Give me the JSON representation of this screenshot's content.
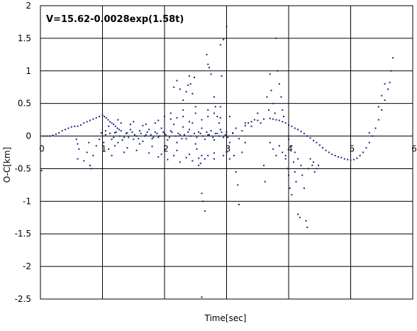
{
  "chart_data": {
    "type": "scatter",
    "title": "V=15.62-0.0028exp(1.58t)",
    "xlabel": "Time[sec]",
    "ylabel": "O-C[km]",
    "xlim": [
      0,
      6
    ],
    "ylim": [
      -2.5,
      2
    ],
    "x_ticks": [
      "0",
      "1",
      "2",
      "3",
      "4",
      "5",
      "6"
    ],
    "y_ticks": [
      "2",
      "1.5",
      "1",
      "0.5",
      "0",
      "-0.5",
      "-1",
      "-1.5",
      "-2",
      "-2.5"
    ],
    "grid": true,
    "legend": "none",
    "marker_color": "#1a237e",
    "series": [
      {
        "points": [
          [
            0.02,
            -0.53
          ],
          [
            0.05,
            0.0
          ],
          [
            0.1,
            0.0
          ],
          [
            0.15,
            0.0
          ],
          [
            0.2,
            0.01
          ],
          [
            0.25,
            0.03
          ],
          [
            0.3,
            0.05
          ],
          [
            0.35,
            0.08
          ],
          [
            0.4,
            0.1
          ],
          [
            0.45,
            0.12
          ],
          [
            0.5,
            0.14
          ],
          [
            0.55,
            0.15
          ],
          [
            0.6,
            0.15
          ],
          [
            0.65,
            0.17
          ],
          [
            0.7,
            0.2
          ],
          [
            0.75,
            0.22
          ],
          [
            0.8,
            0.24
          ],
          [
            0.85,
            0.26
          ],
          [
            0.9,
            0.28
          ],
          [
            0.95,
            0.3
          ],
          [
            1.0,
            0.32
          ],
          [
            1.03,
            0.3
          ],
          [
            1.06,
            0.28
          ],
          [
            1.09,
            0.25
          ],
          [
            1.12,
            0.22
          ],
          [
            1.15,
            0.2
          ],
          [
            1.18,
            0.18
          ],
          [
            1.21,
            0.15
          ],
          [
            1.24,
            0.12
          ],
          [
            1.27,
            0.1
          ],
          [
            0.58,
            -0.05
          ],
          [
            0.6,
            -0.12
          ],
          [
            0.62,
            -0.2
          ],
          [
            0.6,
            -0.35
          ],
          [
            0.7,
            -0.38
          ],
          [
            0.75,
            -0.25
          ],
          [
            0.78,
            -0.1
          ],
          [
            0.8,
            -0.45
          ],
          [
            0.82,
            -0.5
          ],
          [
            0.85,
            -0.3
          ],
          [
            0.9,
            -0.15
          ],
          [
            0.95,
            -0.05
          ],
          [
            0.98,
            0.05
          ],
          [
            1.02,
            -0.1
          ],
          [
            1.05,
            0.02
          ],
          [
            1.1,
            -0.2
          ],
          [
            1.15,
            -0.05
          ],
          [
            1.2,
            0.05
          ],
          [
            1.25,
            -0.1
          ],
          [
            1.3,
            0.08
          ],
          [
            1.35,
            -0.02
          ],
          [
            1.4,
            0.05
          ],
          [
            1.45,
            0.1
          ],
          [
            1.5,
            -0.05
          ],
          [
            1.55,
            0.0
          ],
          [
            1.6,
            0.08
          ],
          [
            1.65,
            -0.08
          ],
          [
            1.7,
            0.02
          ],
          [
            1.75,
            0.1
          ],
          [
            1.8,
            -0.04
          ],
          [
            1.85,
            0.06
          ],
          [
            1.9,
            -0.02
          ],
          [
            1.95,
            0.12
          ],
          [
            2.0,
            0.04
          ],
          [
            2.05,
            -0.06
          ],
          [
            2.1,
            0.08
          ],
          [
            2.15,
            0.18
          ],
          [
            2.2,
            -0.1
          ],
          [
            2.25,
            0.02
          ],
          [
            2.3,
            0.14
          ],
          [
            2.35,
            -0.04
          ],
          [
            2.4,
            0.1
          ],
          [
            2.45,
            0.2
          ],
          [
            2.5,
            -0.12
          ],
          [
            2.55,
            0.06
          ],
          [
            2.6,
            0.12
          ],
          [
            2.65,
            -0.05
          ],
          [
            2.7,
            0.02
          ],
          [
            2.75,
            0.08
          ],
          [
            2.8,
            -0.06
          ],
          [
            2.85,
            0.04
          ],
          [
            2.9,
            0.1
          ],
          [
            2.95,
            -0.02
          ],
          [
            3.0,
            0.06
          ],
          [
            3.05,
            -0.1
          ],
          [
            3.1,
            0.04
          ],
          [
            3.15,
            0.12
          ],
          [
            3.2,
            -0.04
          ],
          [
            3.25,
            0.08
          ],
          [
            3.3,
            0.16
          ],
          [
            1.1,
            0.15
          ],
          [
            1.2,
            -0.15
          ],
          [
            1.3,
            0.2
          ],
          [
            1.4,
            -0.18
          ],
          [
            1.5,
            0.22
          ],
          [
            1.6,
            -0.12
          ],
          [
            1.7,
            0.18
          ],
          [
            1.8,
            -0.16
          ],
          [
            1.9,
            0.24
          ],
          [
            2.0,
            -0.2
          ],
          [
            2.1,
            0.26
          ],
          [
            2.2,
            -0.22
          ],
          [
            2.3,
            0.3
          ],
          [
            2.4,
            -0.28
          ],
          [
            2.5,
            0.35
          ],
          [
            2.6,
            -0.3
          ],
          [
            2.7,
            0.4
          ],
          [
            2.8,
            -0.35
          ],
          [
            2.9,
            0.45
          ],
          [
            3.0,
            -0.25
          ],
          [
            1.15,
            -0.3
          ],
          [
            1.35,
            -0.25
          ],
          [
            1.55,
            -0.22
          ],
          [
            1.75,
            -0.26
          ],
          [
            1.95,
            -0.28
          ],
          [
            2.15,
            -0.3
          ],
          [
            1.25,
            0.25
          ],
          [
            1.45,
            0.18
          ],
          [
            1.65,
            0.16
          ],
          [
            1.85,
            0.2
          ],
          [
            1.05,
            0.08
          ],
          [
            1.12,
            0.04
          ],
          [
            1.18,
            -0.02
          ],
          [
            1.22,
            0.06
          ],
          [
            1.28,
            0.0
          ],
          [
            1.32,
            -0.06
          ],
          [
            1.38,
            0.04
          ],
          [
            1.42,
            -0.02
          ],
          [
            1.48,
            0.06
          ],
          [
            1.52,
            0.02
          ],
          [
            1.58,
            -0.04
          ],
          [
            1.62,
            0.04
          ],
          [
            1.68,
            0.0
          ],
          [
            1.72,
            0.06
          ],
          [
            1.78,
            0.02
          ],
          [
            1.82,
            -0.02
          ],
          [
            1.88,
            0.04
          ],
          [
            1.92,
            0.0
          ],
          [
            1.98,
            0.06
          ],
          [
            2.02,
            0.02
          ],
          [
            2.08,
            -0.02
          ],
          [
            2.12,
            0.06
          ],
          [
            2.18,
            0.0
          ],
          [
            2.22,
            0.04
          ],
          [
            2.28,
            -0.04
          ],
          [
            2.32,
            0.02
          ],
          [
            2.38,
            0.06
          ],
          [
            2.42,
            0.0
          ],
          [
            2.48,
            0.04
          ],
          [
            2.52,
            -0.02
          ],
          [
            2.58,
            0.04
          ],
          [
            2.62,
            0.0
          ],
          [
            2.68,
            0.06
          ],
          [
            2.72,
            0.02
          ],
          [
            2.78,
            -0.02
          ],
          [
            2.82,
            0.04
          ],
          [
            2.88,
            0.0
          ],
          [
            2.92,
            0.06
          ],
          [
            2.98,
            0.02
          ],
          [
            3.02,
            -0.02
          ],
          [
            2.15,
            0.75
          ],
          [
            2.2,
            0.85
          ],
          [
            2.25,
            0.72
          ],
          [
            2.3,
            0.55
          ],
          [
            2.35,
            0.68
          ],
          [
            2.38,
            0.78
          ],
          [
            2.4,
            0.92
          ],
          [
            2.42,
            0.8
          ],
          [
            2.45,
            0.65
          ],
          [
            2.48,
            0.9
          ],
          [
            2.55,
            -0.45
          ],
          [
            2.58,
            -0.42
          ],
          [
            2.6,
            -0.88
          ],
          [
            2.62,
            -1.0
          ],
          [
            2.65,
            -1.15
          ],
          [
            2.65,
            -0.35
          ],
          [
            2.52,
            -0.2
          ],
          [
            2.68,
            1.25
          ],
          [
            2.7,
            1.1
          ],
          [
            2.72,
            1.05
          ],
          [
            2.75,
            0.95
          ],
          [
            2.8,
            0.6
          ],
          [
            2.82,
            0.45
          ],
          [
            2.85,
            0.3
          ],
          [
            2.88,
            0.2
          ],
          [
            2.9,
            1.4
          ],
          [
            2.92,
            0.92
          ],
          [
            2.95,
            1.48
          ],
          [
            3.0,
            1.68
          ],
          [
            2.6,
            -2.47
          ],
          [
            3.05,
            0.3
          ],
          [
            3.1,
            0.05
          ],
          [
            3.12,
            -0.3
          ],
          [
            3.15,
            -0.55
          ],
          [
            3.18,
            -0.75
          ],
          [
            3.2,
            -1.05
          ],
          [
            3.25,
            -0.25
          ],
          [
            3.3,
            -0.1
          ],
          [
            3.35,
            0.2
          ],
          [
            3.4,
            0.15
          ],
          [
            3.45,
            0.25
          ],
          [
            3.5,
            0.35
          ],
          [
            3.55,
            0.2
          ],
          [
            3.6,
            -0.45
          ],
          [
            3.62,
            -0.7
          ],
          [
            3.65,
            0.6
          ],
          [
            3.68,
            0.4
          ],
          [
            3.7,
            0.95
          ],
          [
            3.72,
            0.7
          ],
          [
            3.75,
            0.5
          ],
          [
            3.78,
            0.35
          ],
          [
            3.8,
            1.5
          ],
          [
            3.82,
            1.0
          ],
          [
            3.85,
            0.8
          ],
          [
            3.88,
            0.6
          ],
          [
            3.9,
            0.4
          ],
          [
            3.92,
            0.3
          ],
          [
            3.7,
            -0.1
          ],
          [
            3.75,
            -0.2
          ],
          [
            3.8,
            -0.3
          ],
          [
            3.3,
            0.2
          ],
          [
            3.4,
            0.22
          ],
          [
            3.5,
            0.24
          ],
          [
            3.6,
            0.26
          ],
          [
            3.7,
            0.27
          ],
          [
            3.75,
            0.26
          ],
          [
            3.8,
            0.25
          ],
          [
            3.85,
            0.24
          ],
          [
            3.9,
            0.22
          ],
          [
            3.95,
            0.2
          ],
          [
            4.0,
            0.17
          ],
          [
            4.05,
            0.15
          ],
          [
            4.1,
            0.12
          ],
          [
            4.15,
            0.1
          ],
          [
            4.2,
            0.07
          ],
          [
            4.25,
            0.04
          ],
          [
            4.3,
            0.0
          ],
          [
            4.35,
            -0.03
          ],
          [
            4.4,
            -0.07
          ],
          [
            4.45,
            -0.1
          ],
          [
            4.5,
            -0.14
          ],
          [
            4.55,
            -0.18
          ],
          [
            4.6,
            -0.22
          ],
          [
            4.65,
            -0.25
          ],
          [
            4.7,
            -0.28
          ],
          [
            4.75,
            -0.3
          ],
          [
            4.8,
            -0.32
          ],
          [
            4.85,
            -0.33
          ],
          [
            4.9,
            -0.35
          ],
          [
            4.95,
            -0.36
          ],
          [
            5.0,
            -0.37
          ],
          [
            5.05,
            -0.36
          ],
          [
            5.1,
            -0.34
          ],
          [
            5.15,
            -0.3
          ],
          [
            5.2,
            -0.25
          ],
          [
            5.25,
            -0.18
          ],
          [
            5.3,
            -0.1
          ],
          [
            5.35,
            0.0
          ],
          [
            5.4,
            0.12
          ],
          [
            5.45,
            0.25
          ],
          [
            5.5,
            0.4
          ],
          [
            5.55,
            0.55
          ],
          [
            5.6,
            0.72
          ],
          [
            5.63,
            0.82
          ],
          [
            5.65,
            1.0
          ],
          [
            5.68,
            1.2
          ],
          [
            5.45,
            0.45
          ],
          [
            5.5,
            0.62
          ],
          [
            5.55,
            0.8
          ],
          [
            5.3,
            0.05
          ],
          [
            3.95,
            -0.3
          ],
          [
            3.98,
            -0.5
          ],
          [
            4.0,
            -0.6
          ],
          [
            4.02,
            -0.8
          ],
          [
            4.05,
            -0.9
          ],
          [
            4.08,
            -0.4
          ],
          [
            4.1,
            -0.55
          ],
          [
            4.12,
            -0.7
          ],
          [
            4.15,
            -1.2
          ],
          [
            4.18,
            -1.25
          ],
          [
            4.2,
            -0.45
          ],
          [
            4.22,
            -0.6
          ],
          [
            4.25,
            -0.8
          ],
          [
            4.28,
            -1.3
          ],
          [
            4.3,
            -1.4
          ],
          [
            4.32,
            -0.5
          ],
          [
            4.35,
            -0.35
          ],
          [
            4.38,
            -0.45
          ],
          [
            4.4,
            -0.4
          ],
          [
            4.42,
            -0.55
          ],
          [
            4.45,
            -0.5
          ],
          [
            4.48,
            -0.45
          ],
          [
            4.0,
            -0.05
          ],
          [
            4.05,
            -0.15
          ],
          [
            4.1,
            -0.25
          ],
          [
            4.15,
            -0.35
          ],
          [
            4.0,
            0.0
          ],
          [
            3.85,
            -0.15
          ],
          [
            3.9,
            -0.25
          ],
          [
            3.95,
            -0.35
          ],
          [
            2.0,
            0.3
          ],
          [
            2.1,
            0.35
          ],
          [
            2.2,
            0.28
          ],
          [
            2.3,
            0.4
          ],
          [
            2.4,
            0.22
          ],
          [
            2.5,
            0.45
          ],
          [
            2.6,
            0.25
          ],
          [
            2.7,
            0.3
          ],
          [
            2.8,
            0.35
          ],
          [
            2.9,
            0.28
          ],
          [
            1.9,
            -0.32
          ],
          [
            2.05,
            -0.36
          ],
          [
            2.25,
            -0.4
          ],
          [
            2.35,
            -0.33
          ],
          [
            2.45,
            -0.38
          ],
          [
            2.55,
            -0.34
          ],
          [
            2.7,
            -0.3
          ],
          [
            2.8,
            -0.26
          ],
          [
            2.95,
            -0.3
          ],
          [
            3.05,
            -0.35
          ]
        ]
      }
    ]
  }
}
